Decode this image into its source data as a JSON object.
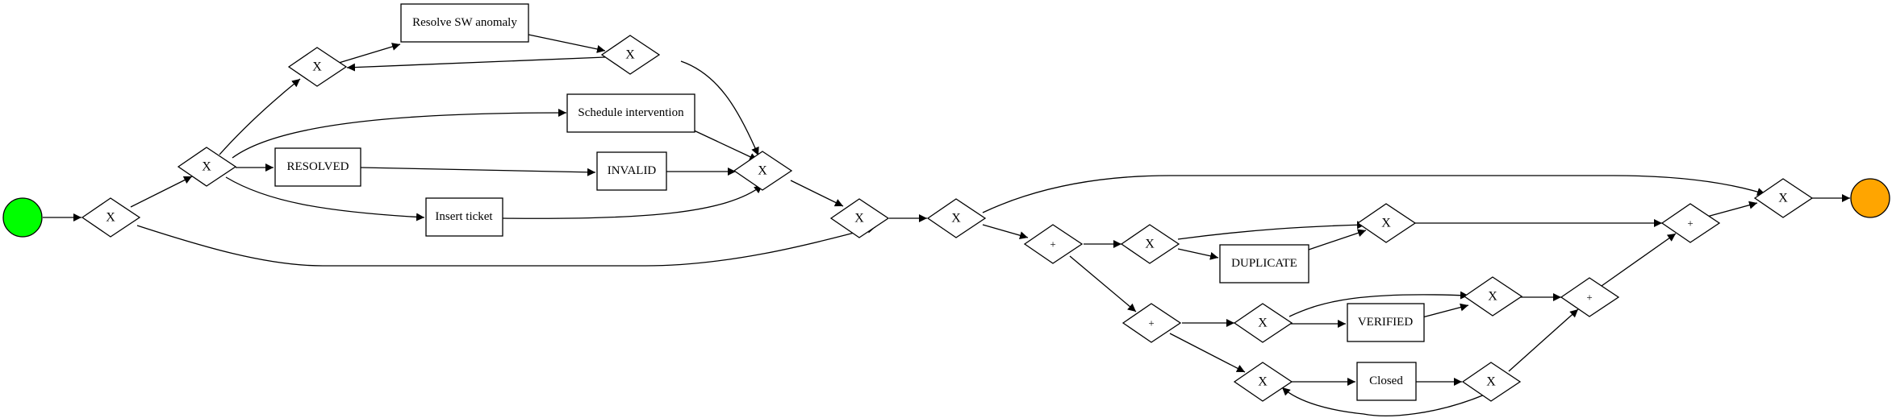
{
  "diagram": {
    "type": "bpmn-process-model",
    "start_event": {
      "color": "#00ff00"
    },
    "end_event": {
      "color": "#ffa500"
    },
    "tasks": {
      "resolve_sw_anomaly": "Resolve SW anomaly",
      "schedule_intervention": "Schedule intervention",
      "resolved": "RESOLVED",
      "invalid": "INVALID",
      "insert_ticket": "Insert ticket",
      "duplicate": "DUPLICATE",
      "verified": "VERIFIED",
      "closed": "Closed"
    },
    "gateway_labels": {
      "xor": "X",
      "and": "+"
    }
  }
}
